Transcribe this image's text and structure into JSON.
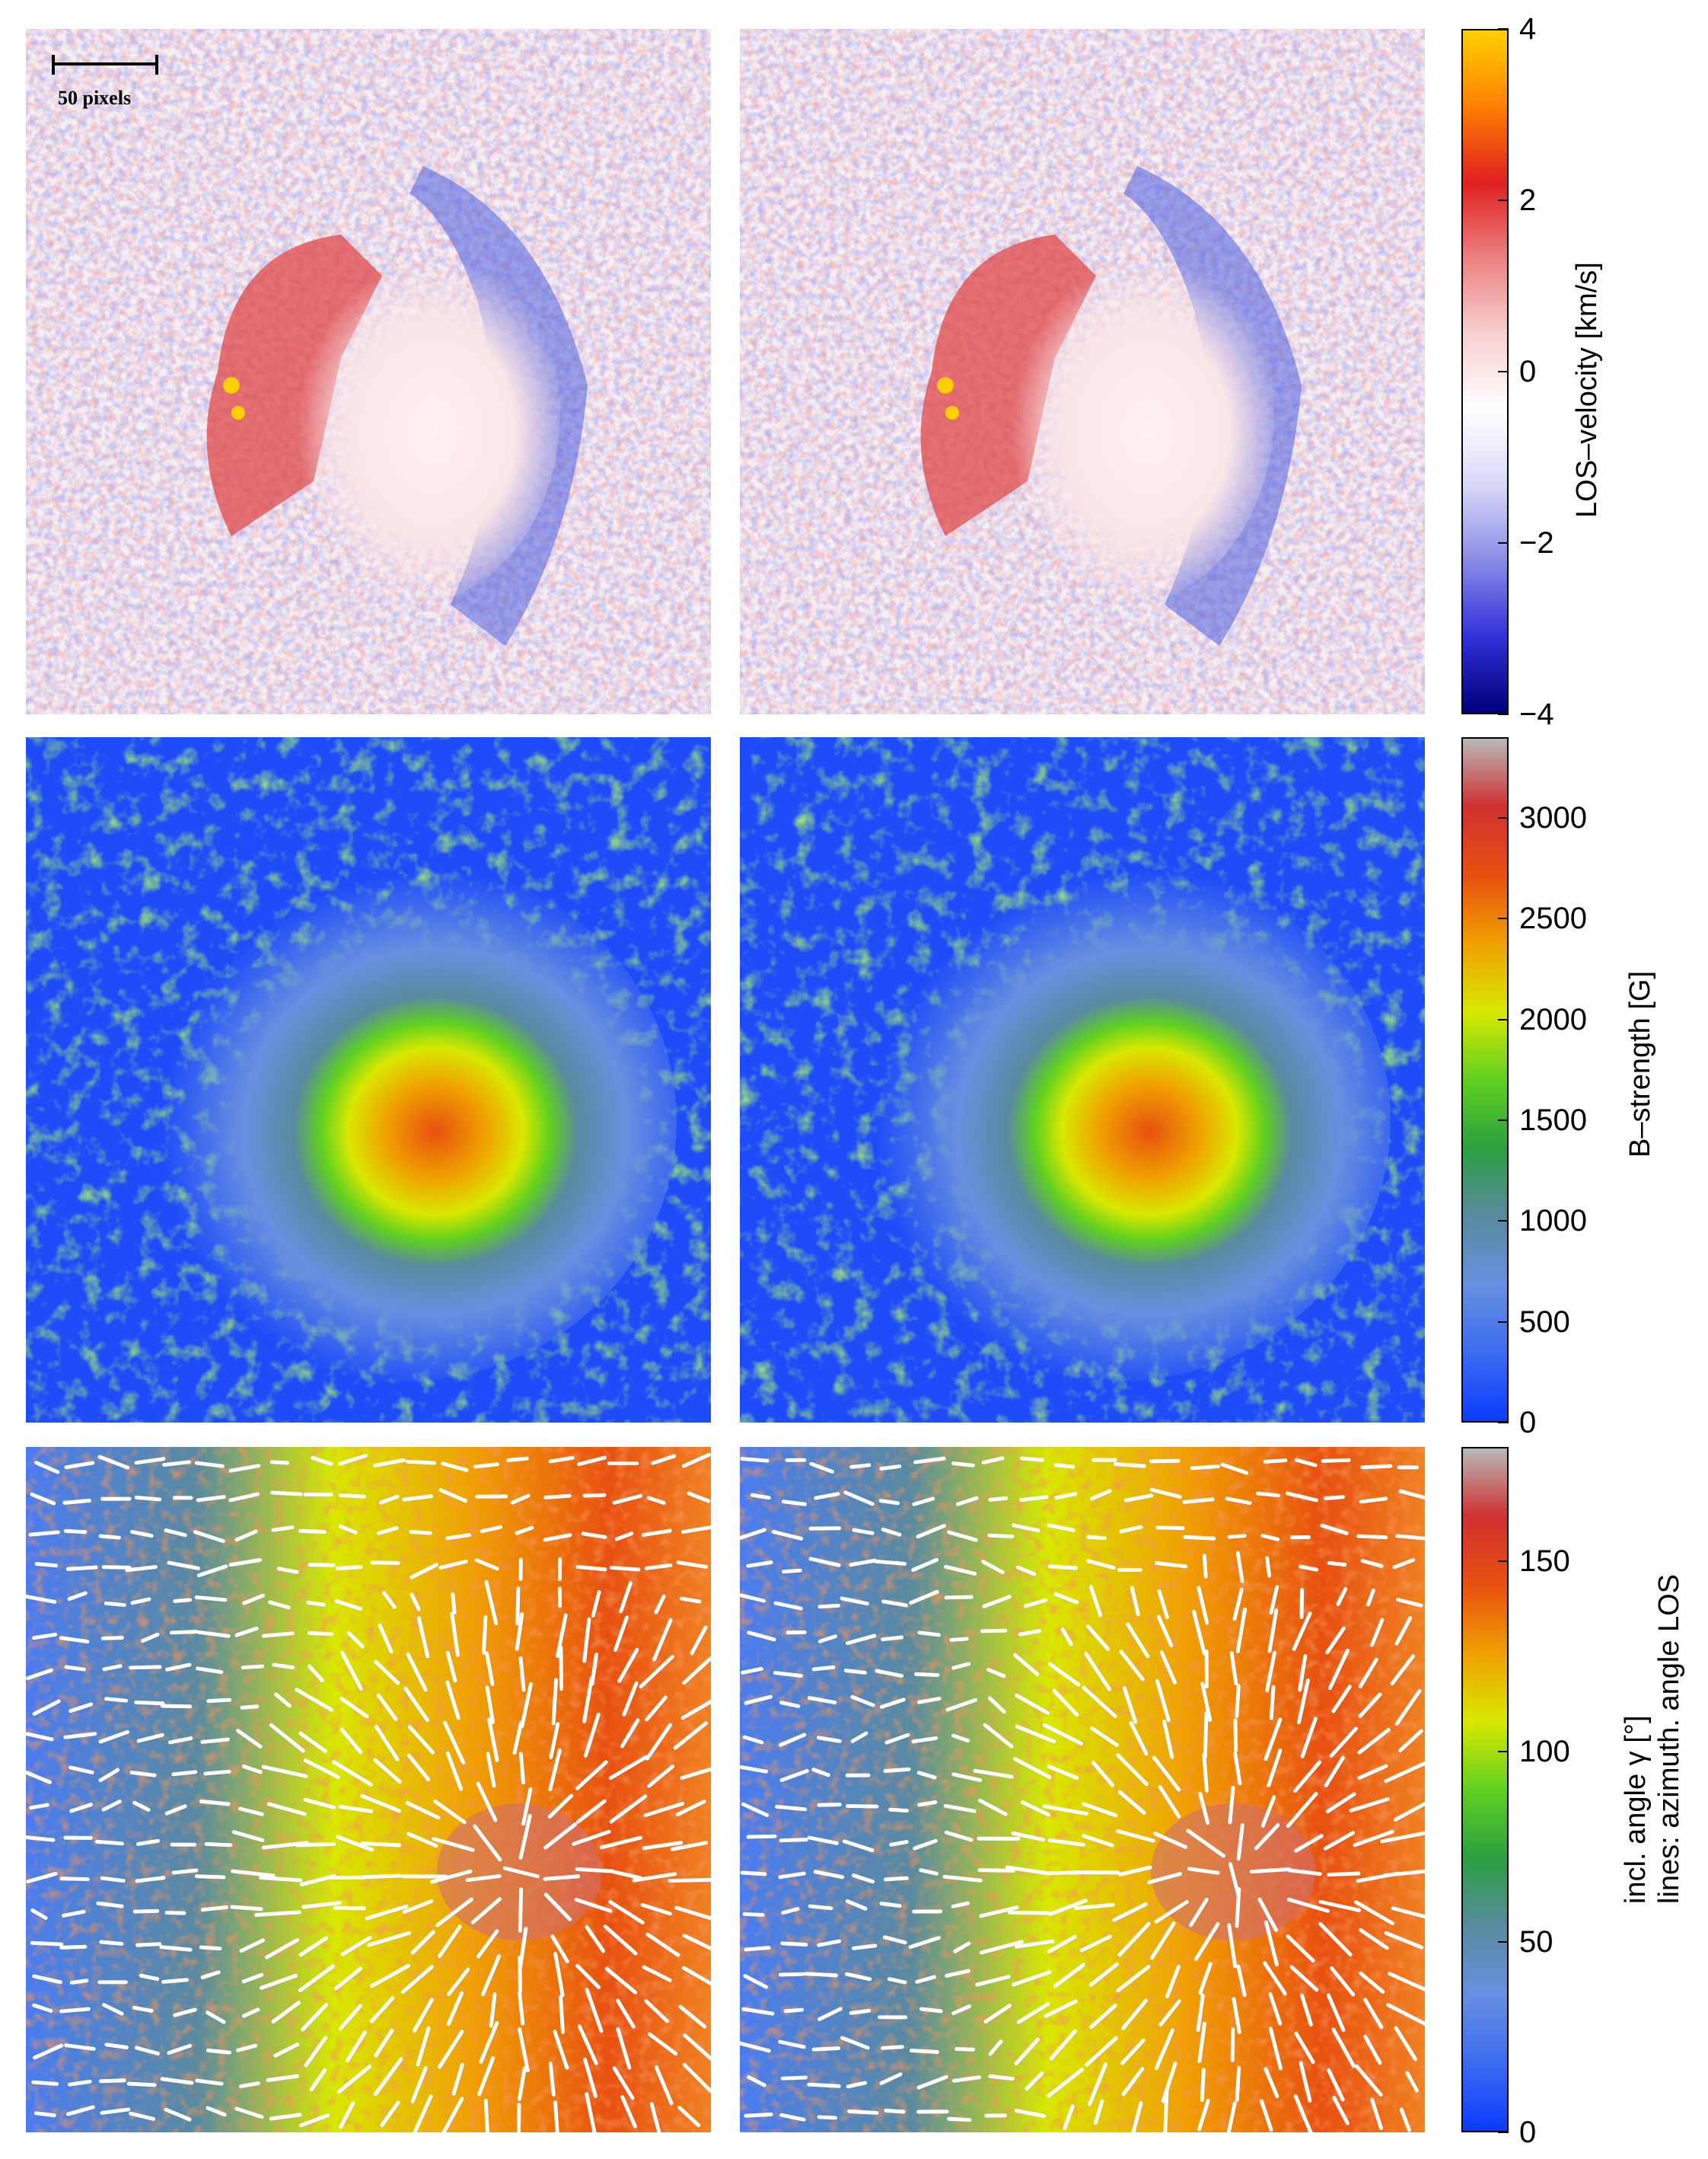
{
  "scale_bar": {
    "label": "50 pixels"
  },
  "rows": [
    {
      "name": "velocity",
      "colorbar_label": "LOS–velocity [km/s]",
      "ticks": [
        "4",
        "2",
        "0",
        "−2",
        "−4"
      ],
      "tick_values": [
        4,
        2,
        0,
        -2,
        -4
      ],
      "range": [
        -4,
        4
      ],
      "colors": [
        "#00007a",
        "#3030d8",
        "#8a8ae8",
        "#d8d8f8",
        "#ffffff",
        "#f8d0d0",
        "#ec8080",
        "#e02020",
        "#ff8000",
        "#ffd000"
      ]
    },
    {
      "name": "field-strength",
      "colorbar_label": "B–strength [G]",
      "ticks": [
        "3000",
        "2500",
        "2000",
        "1500",
        "1000",
        "500",
        "0"
      ],
      "tick_values": [
        3000,
        2500,
        2000,
        1500,
        1000,
        500,
        0
      ],
      "range": [
        0,
        3400
      ],
      "colors": [
        "#0a3cff",
        "#3c6cf0",
        "#6690e0",
        "#5a8aa0",
        "#2aa040",
        "#60d020",
        "#d8e800",
        "#f0a000",
        "#e85010",
        "#d03030",
        "#b8b8b8"
      ]
    },
    {
      "name": "inclination",
      "colorbar_label_line1": "incl. angle γ [°]",
      "colorbar_label_line2": "lines: azimuth. angle LOS",
      "ticks": [
        "150",
        "100",
        "50",
        "0"
      ],
      "tick_values": [
        150,
        100,
        50,
        0
      ],
      "range": [
        0,
        180
      ],
      "colors": [
        "#0a3cff",
        "#3c6cf0",
        "#6690e0",
        "#5a8aa0",
        "#2aa040",
        "#60d020",
        "#d8e800",
        "#f0a000",
        "#e85010",
        "#d03030",
        "#b8b8b8"
      ]
    }
  ]
}
